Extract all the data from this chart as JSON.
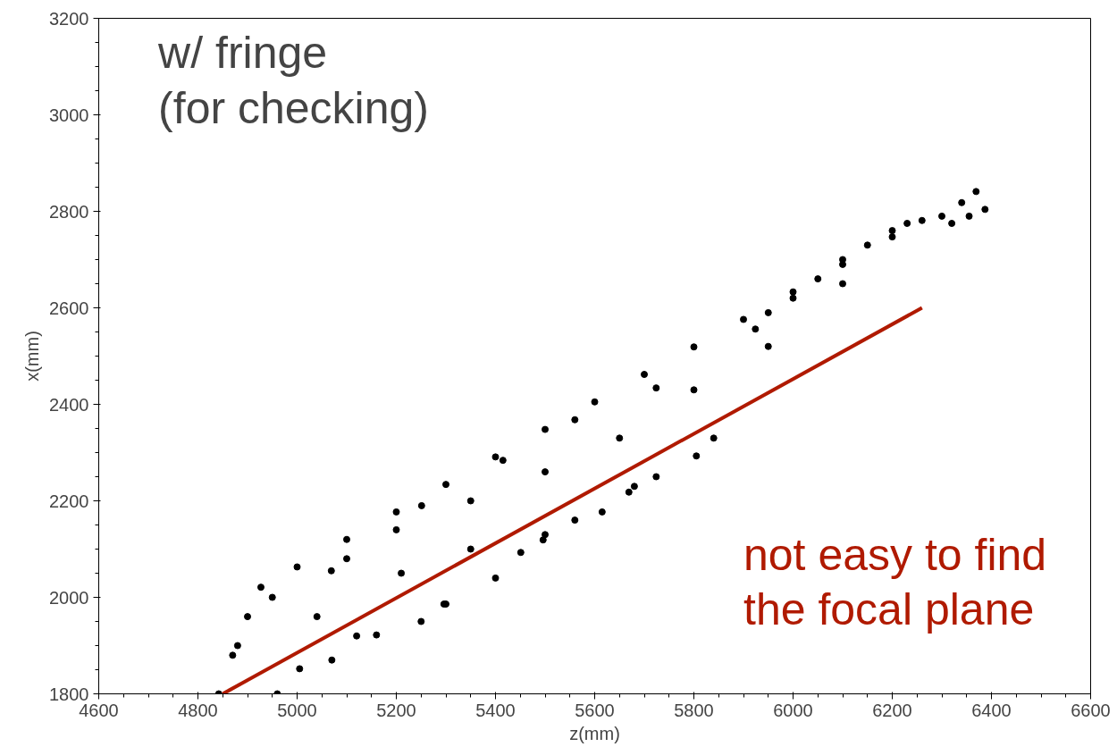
{
  "chart_data": {
    "type": "scatter",
    "xlabel": "z(mm)",
    "ylabel": "x(mm)",
    "xlim": [
      4600,
      6600
    ],
    "ylim": [
      1800,
      3200
    ],
    "xticks": [
      4600,
      4800,
      5000,
      5200,
      5400,
      5600,
      5800,
      6000,
      6200,
      6400,
      6600
    ],
    "yticks": [
      1800,
      2000,
      2200,
      2400,
      2600,
      2800,
      3000,
      3200
    ],
    "grid": false,
    "series": [
      {
        "marker": "circle",
        "color": "#000000",
        "x": [
          4842,
          4870,
          4900,
          4927,
          5000,
          5100,
          5200,
          5300,
          5400,
          5500,
          5600,
          5700,
          5800,
          5900,
          6000,
          6100,
          6200,
          6260,
          6300,
          6340,
          6369,
          6320,
          6355,
          6387,
          4960,
          5005,
          5040,
          5069,
          5070,
          5120,
          5160,
          5210,
          5251,
          5250,
          5300,
          5296,
          5350,
          5415,
          5400,
          5451,
          5496,
          5500,
          5560,
          5560,
          5615,
          5669,
          5680,
          5724,
          5724,
          5805,
          5840,
          5924,
          5950,
          6000,
          6050,
          6100,
          6150,
          6200,
          6230,
          4880,
          4950,
          5100,
          5200,
          5350,
          5500,
          5650,
          5800,
          5950,
          6100
        ],
        "values": [
          1800,
          1880,
          1960,
          2021,
          2063,
          2120,
          2177,
          2234,
          2291,
          2348,
          2405,
          2462,
          2519,
          2576,
          2633,
          2690,
          2747,
          2781,
          2790,
          2818,
          2841,
          2775,
          2790,
          2804,
          1800,
          1852,
          1960,
          2055,
          1870,
          1920,
          1922,
          2050,
          2190,
          1950,
          1986,
          1986,
          2100,
          2284,
          2040,
          2093,
          2119,
          2130,
          2368,
          2160,
          2177,
          2218,
          2230,
          2434,
          2250,
          2293,
          2330,
          2556,
          2590,
          2620,
          2660,
          2700,
          2730,
          2760,
          2775,
          1900,
          2000,
          2080,
          2140,
          2200,
          2260,
          2330,
          2430,
          2520,
          2650
        ]
      },
      {
        "type": "line",
        "color": "#b01a00",
        "x": [
          4850,
          6260
        ],
        "values": [
          1800,
          2600
        ]
      }
    ],
    "annotations": [
      "w/ fringe\n(for checking)",
      "not easy to find\nthe focal plane"
    ]
  }
}
